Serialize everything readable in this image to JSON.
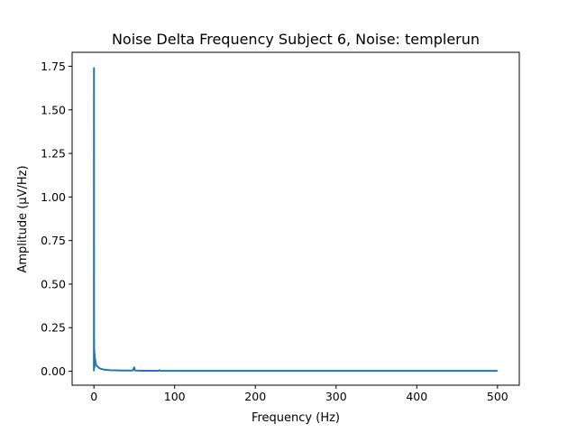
{
  "chart_data": {
    "type": "line",
    "title": "Noise Delta Frequency Subject 6, Noise: templerun",
    "xlabel": "Frequency (Hz)",
    "ylabel": "Amplitude (μV/Hz)",
    "xlim": [
      -27,
      527
    ],
    "ylim": [
      -0.08,
      1.83
    ],
    "xticks": [
      0,
      100,
      200,
      300,
      400,
      500
    ],
    "xtick_labels": [
      "0",
      "100",
      "200",
      "300",
      "400",
      "500"
    ],
    "yticks": [
      0.0,
      0.25,
      0.5,
      0.75,
      1.0,
      1.25,
      1.5,
      1.75
    ],
    "ytick_labels": [
      "0.00",
      "0.25",
      "0.50",
      "0.75",
      "1.00",
      "1.25",
      "1.50",
      "1.75"
    ],
    "grid": false,
    "series": [
      {
        "color": "#1f77b4",
        "x": [
          0,
          0.1,
          0.2,
          0.3,
          0.4,
          0.5,
          0.6,
          0.7,
          0.8,
          1.0,
          1.2,
          1.5,
          2,
          2.5,
          3,
          4,
          5,
          6,
          8,
          10,
          12,
          15,
          20,
          30,
          40,
          48,
          49,
          49.5,
          50,
          50.5,
          51,
          52,
          60,
          80,
          81,
          82,
          100,
          150,
          200,
          250,
          300,
          350,
          400,
          450,
          500
        ],
        "y": [
          0.0,
          1.74,
          0.05,
          0.19,
          0.03,
          0.12,
          0.02,
          0.08,
          0.03,
          0.1,
          0.04,
          0.07,
          0.05,
          0.04,
          0.035,
          0.03,
          0.025,
          0.02,
          0.015,
          0.012,
          0.01,
          0.008,
          0.006,
          0.005,
          0.004,
          0.004,
          0.01,
          0.02,
          0.022,
          0.012,
          0.005,
          0.004,
          0.003,
          0.003,
          0.006,
          0.003,
          0.002,
          0.002,
          0.002,
          0.002,
          0.002,
          0.002,
          0.002,
          0.002,
          0.002
        ]
      }
    ]
  }
}
